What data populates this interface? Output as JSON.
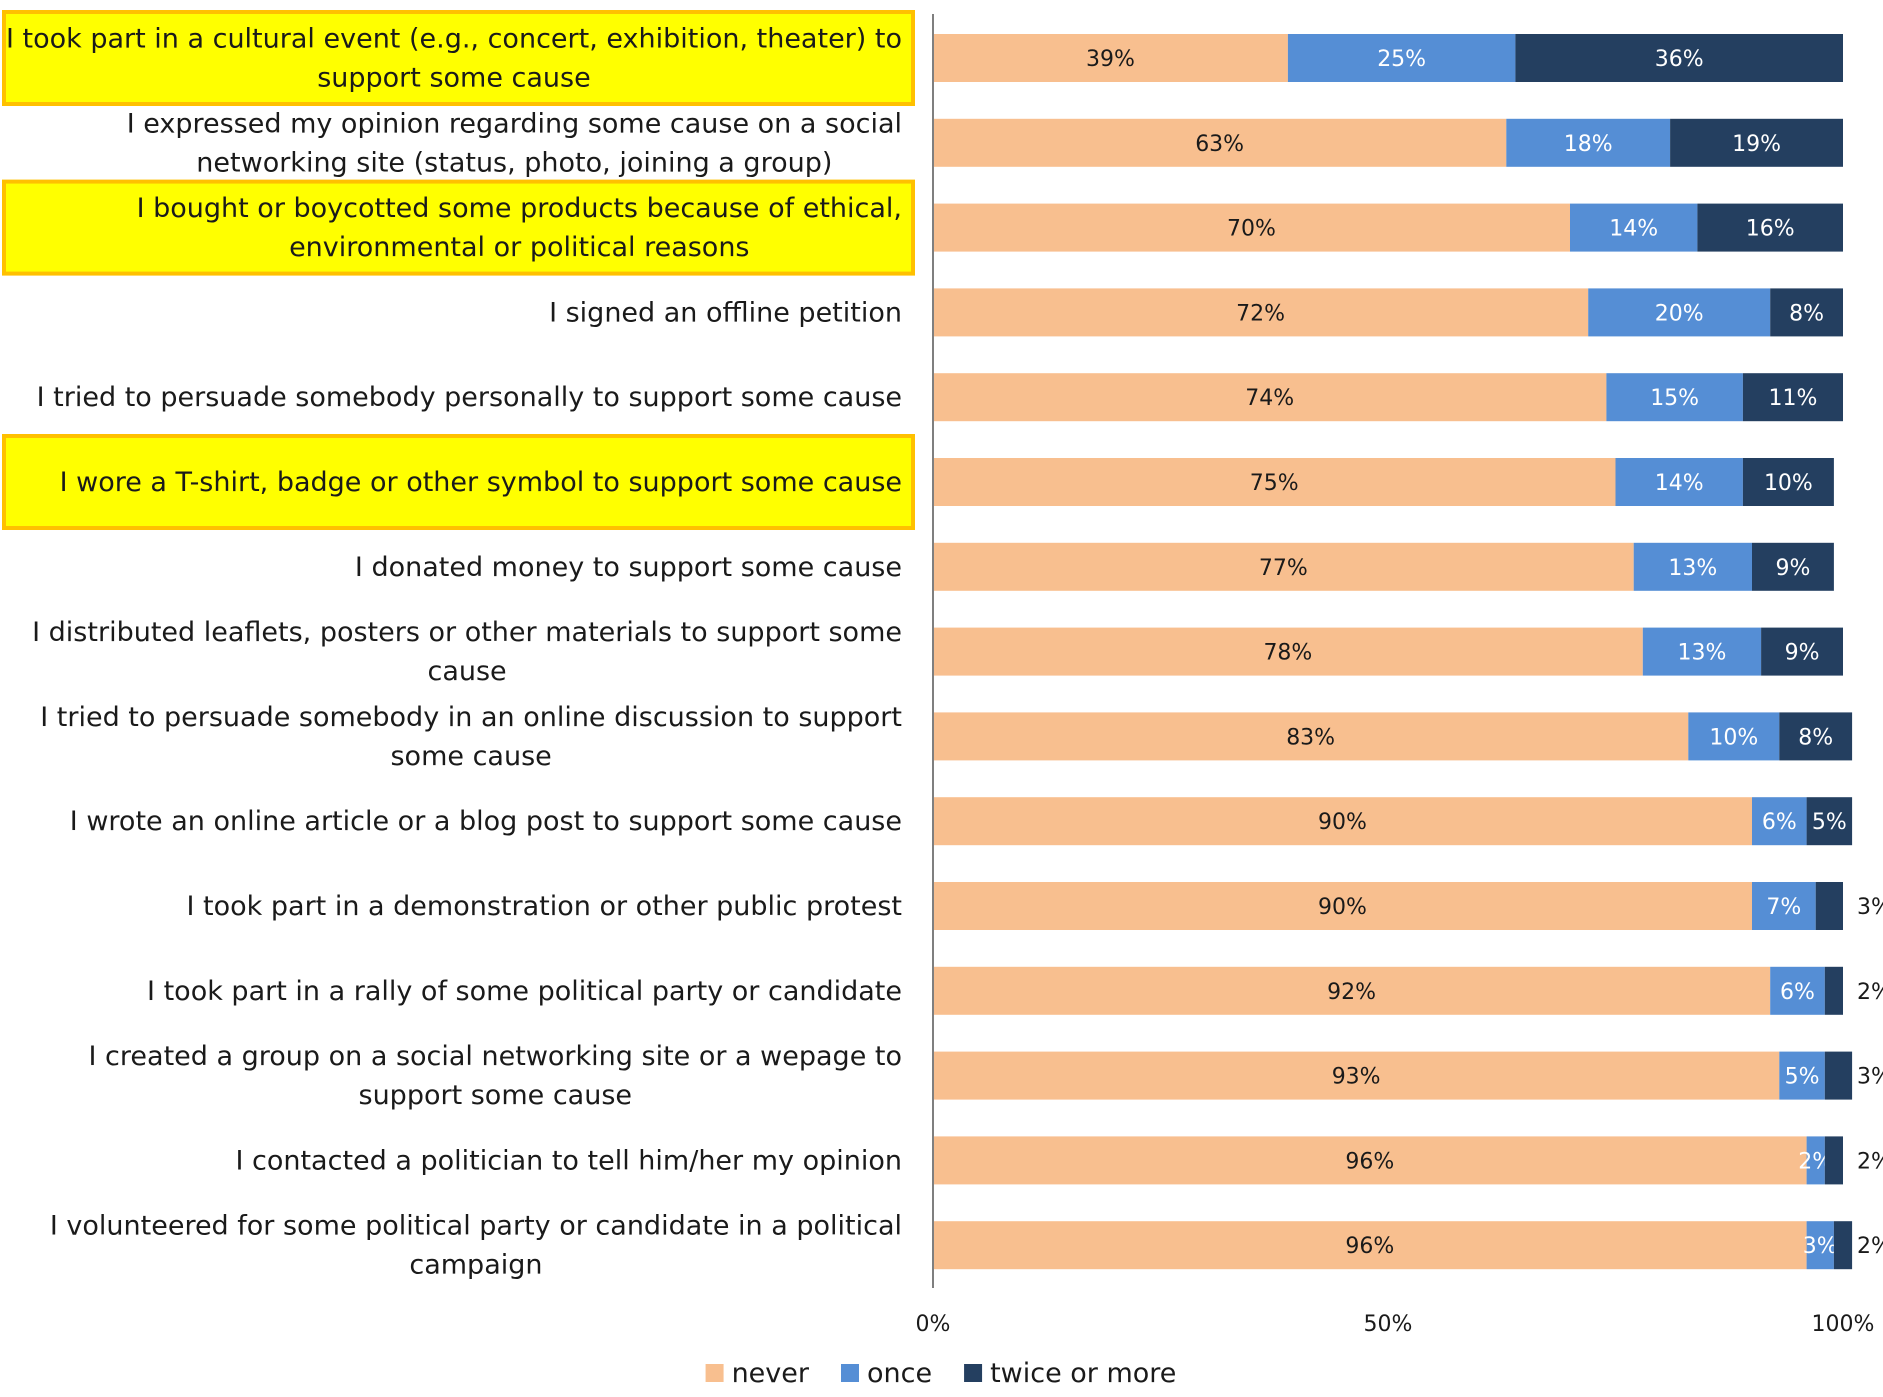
{
  "chart_data": {
    "type": "bar",
    "orientation": "horizontal",
    "stacked": true,
    "percent": true,
    "title": "",
    "xlabel": "",
    "ylabel": "",
    "xlim": [
      0,
      100
    ],
    "x_ticks": [
      "0%",
      "50%",
      "100%"
    ],
    "legend_placement": "bottom",
    "grid": false,
    "colors": {
      "never": "#F8BF8F",
      "once": "#558ED5",
      "twice or more": "#243F60",
      "highlight_fill": "#FFFF00",
      "highlight_border": "#FFC000"
    },
    "categories": [
      {
        "label": "I took part in a cultural event (e.g., concert, exhibition, theater) to support some cause",
        "highlighted": true
      },
      {
        "label": "I expressed my opinion regarding some cause on a social networking site (status, photo, joining a group)",
        "highlighted": false
      },
      {
        "label": "I bought or boycotted some products because of ethical, environmental or political reasons",
        "highlighted": true
      },
      {
        "label": "I signed an offline petition",
        "highlighted": false
      },
      {
        "label": "I tried to persuade somebody personally to support some cause",
        "highlighted": false
      },
      {
        "label": "I wore a T-shirt, badge or other symbol to support some cause",
        "highlighted": true
      },
      {
        "label": "I donated money to support some cause",
        "highlighted": false
      },
      {
        "label": "I distributed leaflets, posters or other materials to support some cause",
        "highlighted": false
      },
      {
        "label": "I tried to persuade somebody in an online discussion to support some cause",
        "highlighted": false
      },
      {
        "label": "I wrote an online article or a blog post to support some cause",
        "highlighted": false
      },
      {
        "label": "I took part in a demonstration or other public protest",
        "highlighted": false
      },
      {
        "label": "I took part in a rally of some political party or candidate",
        "highlighted": false
      },
      {
        "label": "I created a group on a social networking site or a wepage to support some cause",
        "highlighted": false
      },
      {
        "label": "I contacted a politician to tell him/her my opinion",
        "highlighted": false
      },
      {
        "label": "I volunteered for some political party or candidate in a political campaign",
        "highlighted": false
      }
    ],
    "series": [
      {
        "name": "never",
        "values": [
          39,
          63,
          70,
          72,
          74,
          75,
          77,
          78,
          83,
          90,
          90,
          92,
          93,
          96,
          96
        ],
        "labels": [
          "39%",
          "63%",
          "70%",
          "72%",
          "74%",
          "75%",
          "77%",
          "78%",
          "83%",
          "90%",
          "90%",
          "92%",
          "93%",
          "96%",
          "96%"
        ]
      },
      {
        "name": "once",
        "values": [
          25,
          18,
          14,
          20,
          15,
          14,
          13,
          13,
          10,
          6,
          7,
          6,
          5,
          2,
          3
        ],
        "labels": [
          "25%",
          "18%",
          "14%",
          "20%",
          "15%",
          "14%",
          "13%",
          "13%",
          "10%",
          "6%",
          "7%",
          "6%",
          "5%",
          "2%",
          "3%"
        ]
      },
      {
        "name": "twice or more",
        "values": [
          36,
          19,
          16,
          8,
          11,
          10,
          9,
          9,
          8,
          5,
          3,
          2,
          3,
          2,
          2
        ],
        "labels": [
          "36%",
          "19%",
          "16%",
          "8%",
          "11%",
          "10%",
          "9%",
          "9%",
          "8%",
          "5%",
          "3%",
          "2%",
          "3%",
          "2%",
          "2%"
        ]
      }
    ]
  }
}
